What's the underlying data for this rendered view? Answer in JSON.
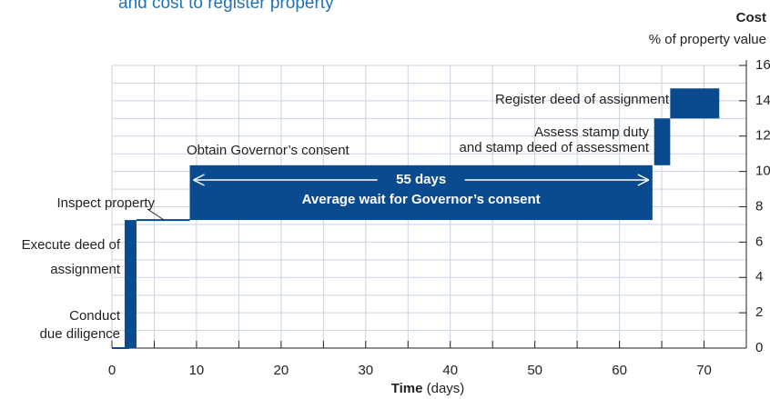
{
  "chart_data": {
    "type": "step",
    "title": "and cost to register property",
    "x_label": "Time",
    "x_unit": "(days)",
    "y_label": "Cost",
    "y_unit": "% of property value",
    "xlim": [
      0,
      75
    ],
    "ylim": [
      0,
      16
    ],
    "xticks": [
      0,
      10,
      20,
      30,
      40,
      50,
      60,
      70
    ],
    "xminor": [
      0,
      5,
      10,
      15,
      20,
      25,
      30,
      35,
      40,
      45,
      50,
      55,
      60,
      65,
      70,
      75
    ],
    "yticks": [
      0,
      2,
      4,
      6,
      8,
      10,
      12,
      14,
      16
    ],
    "yminor": [
      0,
      1,
      2,
      3,
      4,
      5,
      6,
      7,
      8,
      9,
      10,
      11,
      12,
      13,
      14,
      15,
      16
    ],
    "grid": true,
    "color": "#0a4a8e",
    "steps": [
      {
        "name": [
          "Conduct",
          "due diligence"
        ],
        "start": 0,
        "end": 2,
        "from": 0,
        "to": 0
      },
      {
        "name": [
          "Execute deed of",
          "assignment"
        ],
        "start": 1.5,
        "end": 2.9,
        "from": 0,
        "to": 7.25
      },
      {
        "name": [
          "Inspect property"
        ],
        "start": 2.9,
        "end": 9.2,
        "from": 7.25,
        "to": 7.25
      },
      {
        "name": [
          "Obtain Governor’s consent"
        ],
        "start": 9.2,
        "end": 63.9,
        "from": 7.25,
        "to": 10.35
      },
      {
        "name": [
          "Assess stamp duty",
          "and stamp deed of assessment"
        ],
        "start": 64.1,
        "end": 66.0,
        "from": 10.35,
        "to": 13.0
      },
      {
        "name": [
          "Register deed of assignment"
        ],
        "start": 66.0,
        "end": 71.8,
        "from": 13.0,
        "to": 14.7
      }
    ],
    "annotations": [
      "55 days",
      "Average wait for Governor’s consent"
    ]
  }
}
